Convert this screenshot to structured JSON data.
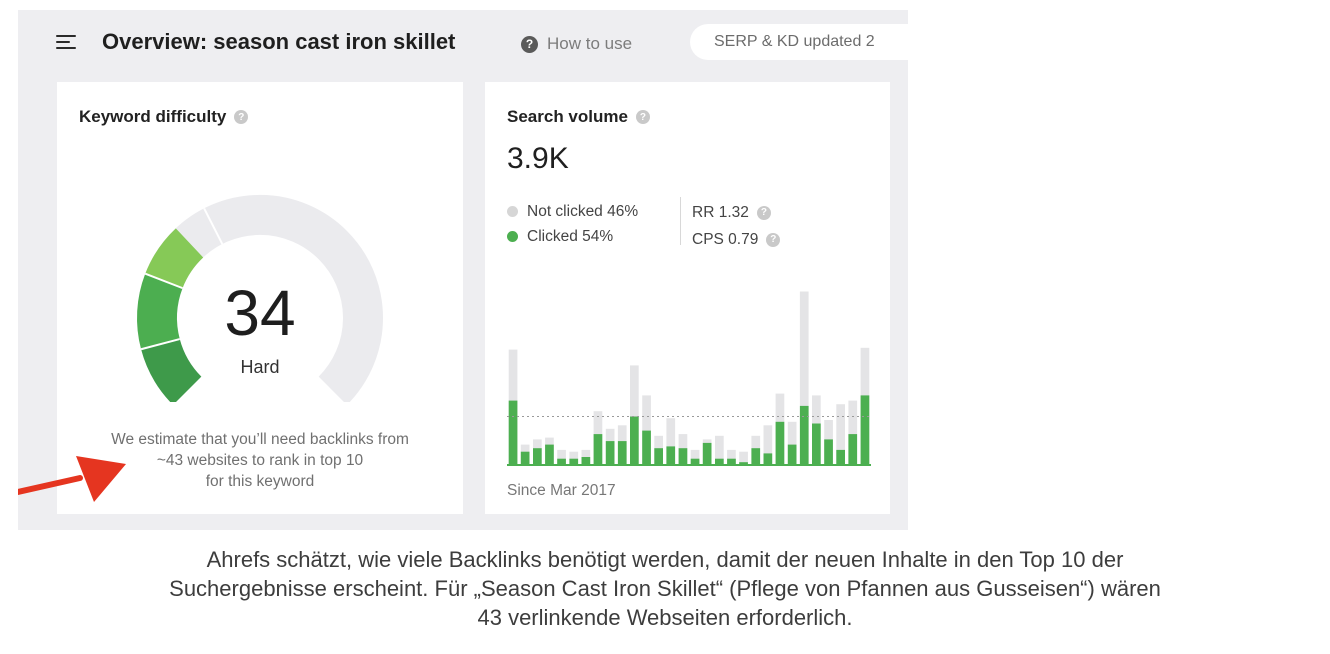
{
  "header": {
    "title": "Overview: season cast iron skillet",
    "how_to_use": "How to use",
    "help_glyph": "?",
    "serp_status": "SERP & KD updated 2"
  },
  "keyword_difficulty": {
    "title": "Keyword difficulty",
    "help_glyph": "?",
    "value": "34",
    "score": 34,
    "rating": "Hard",
    "note_lines": [
      "We estimate that you’ll need backlinks from",
      "~43 websites to rank in top 10",
      "for this keyword"
    ]
  },
  "search_volume": {
    "title": "Search volume",
    "help_glyph": "?",
    "value": "3.9K",
    "legend": [
      {
        "label": "Not clicked 46%",
        "color": "#d6d6d6"
      },
      {
        "label": "Clicked 54%",
        "color": "#4caf50"
      }
    ],
    "metrics": [
      {
        "label": "RR 1.32",
        "help_glyph": "?"
      },
      {
        "label": "CPS 0.79",
        "help_glyph": "?"
      }
    ],
    "since": "Since Mar 2017"
  },
  "chart_data": {
    "type": "bar",
    "series": [
      {
        "name": "Not clicked",
        "color": "#e4e4e6",
        "values": [
          0.65,
          0.11,
          0.14,
          0.15,
          0.08,
          0.07,
          0.08,
          0.3,
          0.2,
          0.22,
          0.56,
          0.39,
          0.16,
          0.26,
          0.17,
          0.08,
          0.14,
          0.16,
          0.08,
          0.07,
          0.16,
          0.22,
          0.4,
          0.24,
          0.98,
          0.39,
          0.25,
          0.34,
          0.36,
          0.66
        ]
      },
      {
        "name": "Clicked",
        "color": "#4caf50",
        "values": [
          0.36,
          0.07,
          0.09,
          0.11,
          0.03,
          0.03,
          0.04,
          0.17,
          0.13,
          0.13,
          0.27,
          0.19,
          0.09,
          0.1,
          0.09,
          0.03,
          0.12,
          0.03,
          0.03,
          0.01,
          0.09,
          0.06,
          0.24,
          0.11,
          0.33,
          0.23,
          0.14,
          0.08,
          0.17,
          0.39
        ]
      }
    ],
    "reference_line": 0.27
  },
  "caption": {
    "lines": [
      "Ahrefs schätzt, wie viele Backlinks benötigt werden, damit der neuen Inhalte in den Top 10 der",
      "Suchergebnisse erscheint. Für „Season Cast Iron Skillet“ (Pflege von Pfannen aus Gusseisen“) wären",
      "43 verlinkende Webseiten erforderlich."
    ]
  },
  "colors": {
    "accent_green": "#4caf50",
    "arrow_red": "#e53520",
    "panel_bg": "#eeeef1"
  }
}
